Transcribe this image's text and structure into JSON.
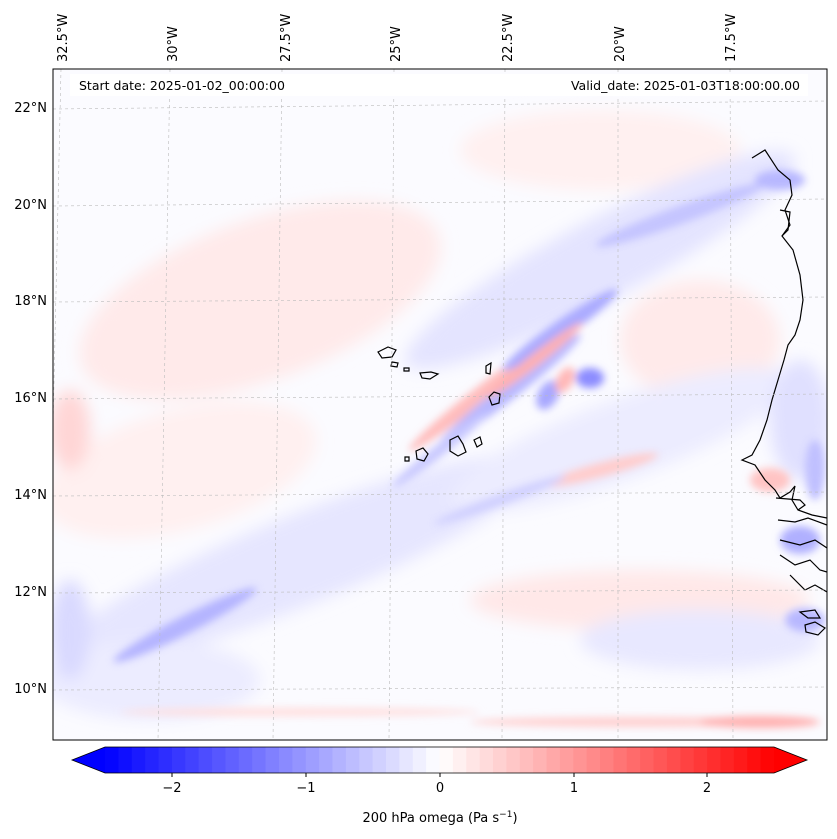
{
  "map": {
    "header": {
      "start_date": "Start date: 2025-01-02_00:00:00",
      "valid_date": "Valid_date: 2025-01-03T18:00:00.00"
    },
    "lon_labels": [
      "32.5°W",
      "30°W",
      "27.5°W",
      "25°W",
      "22.5°W",
      "20°W",
      "17.5°W"
    ],
    "lat_labels": [
      "22°N",
      "20°N",
      "18°N",
      "16°N",
      "14°N",
      "12°N",
      "10°N"
    ],
    "gridlines": "dashed",
    "field": "200 hPa omega",
    "colormap": {
      "name": "bwr",
      "min_color": "#0000ff",
      "mid_color": "#ffffff",
      "max_color": "#ff0000",
      "range": [
        -2.5,
        2.5
      ],
      "extend": "both"
    }
  },
  "colorbar": {
    "ticks": [
      "−2",
      "−1",
      "0",
      "1",
      "2"
    ],
    "tick_values": [
      -2,
      -1,
      0,
      1,
      2
    ],
    "label_main": "200 hPa omega (Pa s",
    "label_exp": "−1",
    "label_close": ")"
  }
}
